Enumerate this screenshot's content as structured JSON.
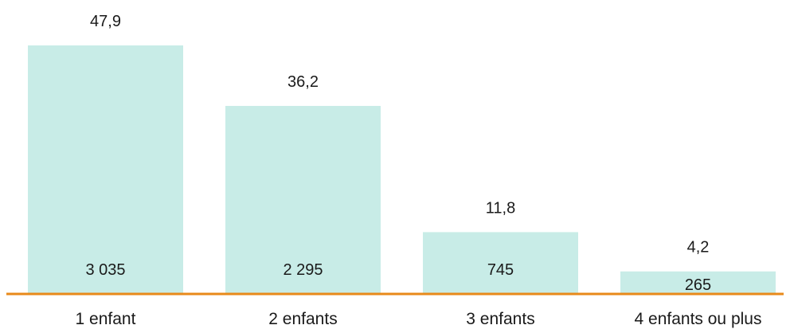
{
  "chart_data": {
    "type": "bar",
    "title": "",
    "xlabel": "",
    "ylabel": "",
    "ylim": [
      0,
      50
    ],
    "grid": false,
    "legend": "none",
    "categories": [
      "1 enfant",
      "2 enfants",
      "3 enfants",
      "4 enfants ou plus"
    ],
    "series": [
      {
        "values": [
          47.9,
          36.2,
          11.8,
          4.2
        ],
        "value_labels": [
          "47,9",
          "36,2",
          "11,8",
          "4,2"
        ],
        "counts": [
          3035,
          2295,
          745,
          265
        ],
        "count_labels": [
          "3 035",
          "2 295",
          "745",
          "265"
        ]
      }
    ],
    "colors": {
      "bar": "#c8ece7",
      "axis": "#e8891a",
      "text": "#1a1a1a"
    }
  }
}
